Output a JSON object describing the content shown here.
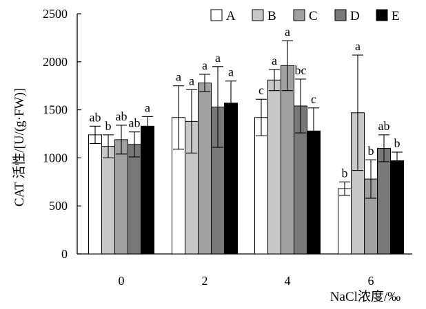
{
  "chart_data": {
    "type": "bar",
    "ylabel": "CAT 活性/[U/(g·FW)]",
    "xlabel": "NaCl浓度/‰",
    "ylim": [
      0,
      2500
    ],
    "yticks": [
      0,
      500,
      1000,
      1500,
      2000,
      2500
    ],
    "categories": [
      "0",
      "2",
      "4",
      "6"
    ],
    "legend_position": "top-right",
    "grid": false,
    "series": [
      {
        "name": "A",
        "color": "#ffffff",
        "values": [
          1240,
          1420,
          1420,
          680
        ],
        "errors": [
          90,
          330,
          190,
          70
        ],
        "letters": [
          "ab",
          "a",
          "c",
          "b"
        ]
      },
      {
        "name": "B",
        "color": "#c8c8c8",
        "values": [
          1120,
          1380,
          1810,
          1470
        ],
        "errors": [
          120,
          330,
          110,
          600
        ],
        "letters": [
          "b",
          "a",
          "a",
          "a"
        ]
      },
      {
        "name": "C",
        "color": "#a0a0a0",
        "values": [
          1190,
          1780,
          1960,
          780
        ],
        "errors": [
          150,
          90,
          260,
          200
        ],
        "letters": [
          "ab",
          "a",
          "a",
          "b"
        ]
      },
      {
        "name": "D",
        "color": "#787878",
        "values": [
          1140,
          1530,
          1540,
          1100
        ],
        "errors": [
          130,
          420,
          280,
          140
        ],
        "letters": [
          "ab",
          "a",
          "bc",
          "ab"
        ]
      },
      {
        "name": "E",
        "color": "#000000",
        "values": [
          1330,
          1570,
          1280,
          970
        ],
        "errors": [
          100,
          230,
          240,
          90
        ],
        "letters": [
          "a",
          "a",
          "c",
          "b"
        ]
      }
    ]
  }
}
